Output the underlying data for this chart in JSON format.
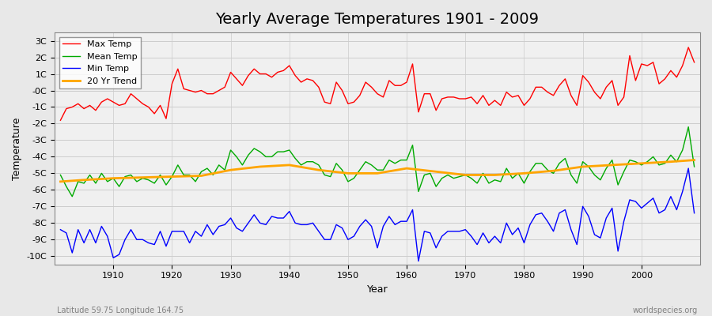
{
  "title": "Yearly Average Temperatures 1901 - 2009",
  "xlabel": "Year",
  "ylabel": "Temperature",
  "footnote_left": "Latitude 59.75 Longitude 164.75",
  "footnote_right": "worldspecies.org",
  "legend_labels": [
    "Max Temp",
    "Mean Temp",
    "Min Temp",
    "20 Yr Trend"
  ],
  "legend_colors": [
    "#ff0000",
    "#00aa00",
    "#0000ff",
    "#ffa500"
  ],
  "bg_color": "#e8e8e8",
  "plot_bg_color": "#f0f0f0",
  "grid_color": "#cccccc",
  "years": [
    1901,
    1902,
    1903,
    1904,
    1905,
    1906,
    1907,
    1908,
    1909,
    1910,
    1911,
    1912,
    1913,
    1914,
    1915,
    1916,
    1917,
    1918,
    1919,
    1920,
    1921,
    1922,
    1923,
    1924,
    1925,
    1926,
    1927,
    1928,
    1929,
    1930,
    1931,
    1932,
    1933,
    1934,
    1935,
    1936,
    1937,
    1938,
    1939,
    1940,
    1941,
    1942,
    1943,
    1944,
    1945,
    1946,
    1947,
    1948,
    1949,
    1950,
    1951,
    1952,
    1953,
    1954,
    1955,
    1956,
    1957,
    1958,
    1959,
    1960,
    1961,
    1962,
    1963,
    1964,
    1965,
    1966,
    1967,
    1968,
    1969,
    1970,
    1971,
    1972,
    1973,
    1974,
    1975,
    1976,
    1977,
    1978,
    1979,
    1980,
    1981,
    1982,
    1983,
    1984,
    1985,
    1986,
    1987,
    1988,
    1989,
    1990,
    1991,
    1992,
    1993,
    1994,
    1995,
    1996,
    1997,
    1998,
    1999,
    2000,
    2001,
    2002,
    2003,
    2004,
    2005,
    2006,
    2007,
    2008,
    2009
  ],
  "max_temp": [
    -1.8,
    -1.1,
    -1.0,
    -0.8,
    -1.1,
    -0.9,
    -1.2,
    -0.7,
    -0.5,
    -0.7,
    -0.9,
    -0.8,
    -0.2,
    -0.5,
    -0.8,
    -1.0,
    -1.4,
    -0.9,
    -1.7,
    0.4,
    1.3,
    0.1,
    0.0,
    -0.1,
    -0.0,
    -0.2,
    -0.2,
    0.0,
    0.2,
    1.1,
    0.7,
    0.3,
    0.9,
    1.3,
    1.0,
    1.0,
    0.8,
    1.1,
    1.2,
    1.5,
    0.9,
    0.5,
    0.7,
    0.6,
    0.2,
    -0.7,
    -0.8,
    0.5,
    0.0,
    -0.8,
    -0.7,
    -0.3,
    0.5,
    0.2,
    -0.2,
    -0.4,
    0.6,
    0.3,
    0.3,
    0.5,
    1.6,
    -1.3,
    -0.2,
    -0.2,
    -1.2,
    -0.5,
    -0.4,
    -0.4,
    -0.5,
    -0.5,
    -0.4,
    -0.8,
    -0.3,
    -0.9,
    -0.6,
    -0.9,
    -0.1,
    -0.4,
    -0.3,
    -0.9,
    -0.5,
    0.2,
    0.2,
    -0.1,
    -0.3,
    0.3,
    0.7,
    -0.3,
    -0.9,
    0.9,
    0.5,
    -0.1,
    -0.5,
    0.2,
    0.6,
    -0.9,
    -0.4,
    2.1,
    0.6,
    1.6,
    1.5,
    1.7,
    0.4,
    0.7,
    1.2,
    0.8,
    1.5,
    2.6,
    1.7
  ],
  "mean_temp": [
    -5.1,
    -5.8,
    -6.4,
    -5.5,
    -5.6,
    -5.1,
    -5.6,
    -5.0,
    -5.5,
    -5.3,
    -5.8,
    -5.2,
    -5.1,
    -5.5,
    -5.3,
    -5.4,
    -5.6,
    -5.1,
    -5.7,
    -5.2,
    -4.5,
    -5.1,
    -5.1,
    -5.5,
    -4.9,
    -4.7,
    -5.1,
    -4.5,
    -4.8,
    -3.6,
    -4.0,
    -4.5,
    -3.9,
    -3.5,
    -3.7,
    -4.0,
    -4.0,
    -3.7,
    -3.7,
    -3.6,
    -4.1,
    -4.5,
    -4.3,
    -4.3,
    -4.5,
    -5.1,
    -5.2,
    -4.4,
    -4.8,
    -5.5,
    -5.3,
    -4.8,
    -4.3,
    -4.5,
    -4.8,
    -4.8,
    -4.2,
    -4.4,
    -4.2,
    -4.2,
    -3.3,
    -6.1,
    -5.1,
    -5.0,
    -5.8,
    -5.3,
    -5.1,
    -5.3,
    -5.2,
    -5.1,
    -5.3,
    -5.6,
    -5.0,
    -5.6,
    -5.4,
    -5.5,
    -4.7,
    -5.3,
    -5.0,
    -5.6,
    -4.9,
    -4.4,
    -4.4,
    -4.8,
    -5.0,
    -4.4,
    -4.1,
    -5.1,
    -5.6,
    -4.3,
    -4.6,
    -5.1,
    -5.4,
    -4.7,
    -4.2,
    -5.7,
    -4.9,
    -4.2,
    -4.3,
    -4.5,
    -4.3,
    -4.0,
    -4.5,
    -4.4,
    -3.9,
    -4.3,
    -3.6,
    -2.2,
    -4.6
  ],
  "min_temp": [
    -8.4,
    -8.6,
    -9.8,
    -8.4,
    -9.2,
    -8.4,
    -9.2,
    -8.2,
    -8.8,
    -10.1,
    -9.9,
    -9.0,
    -8.4,
    -9.0,
    -9.0,
    -9.2,
    -9.3,
    -8.5,
    -9.4,
    -8.5,
    -8.5,
    -8.5,
    -9.2,
    -8.5,
    -8.8,
    -8.1,
    -8.7,
    -8.2,
    -8.1,
    -7.7,
    -8.3,
    -8.5,
    -8.0,
    -7.5,
    -8.0,
    -8.1,
    -7.6,
    -7.7,
    -7.7,
    -7.3,
    -8.0,
    -8.1,
    -8.1,
    -8.0,
    -8.5,
    -9.0,
    -9.0,
    -8.1,
    -8.3,
    -9.0,
    -8.8,
    -8.2,
    -7.8,
    -8.2,
    -9.5,
    -8.2,
    -7.6,
    -8.1,
    -7.9,
    -7.9,
    -7.2,
    -10.3,
    -8.5,
    -8.6,
    -9.5,
    -8.8,
    -8.5,
    -8.5,
    -8.5,
    -8.4,
    -8.8,
    -9.3,
    -8.6,
    -9.2,
    -8.8,
    -9.2,
    -8.0,
    -8.7,
    -8.3,
    -9.2,
    -8.1,
    -7.5,
    -7.4,
    -7.9,
    -8.5,
    -7.4,
    -7.2,
    -8.4,
    -9.3,
    -7.0,
    -7.6,
    -8.7,
    -8.9,
    -7.7,
    -7.1,
    -9.7,
    -7.9,
    -6.6,
    -6.7,
    -7.1,
    -6.8,
    -6.5,
    -7.4,
    -7.2,
    -6.4,
    -7.2,
    -6.1,
    -4.7,
    -7.4
  ],
  "trend_years": [
    1901,
    1905,
    1910,
    1915,
    1920,
    1925,
    1930,
    1935,
    1940,
    1945,
    1950,
    1955,
    1960,
    1965,
    1970,
    1975,
    1980,
    1985,
    1990,
    1995,
    2000,
    2005,
    2009
  ],
  "trend_vals": [
    -5.5,
    -5.4,
    -5.3,
    -5.25,
    -5.2,
    -5.15,
    -4.8,
    -4.6,
    -4.5,
    -4.8,
    -5.0,
    -5.0,
    -4.7,
    -4.9,
    -5.1,
    -5.1,
    -5.0,
    -4.85,
    -4.6,
    -4.5,
    -4.4,
    -4.3,
    -4.2
  ],
  "ylim": [
    -10.5,
    3.5
  ],
  "yticks": [
    -10,
    -9,
    -8,
    -7,
    -6,
    -5,
    -4,
    -3,
    -2,
    -1,
    0,
    1,
    2,
    3
  ],
  "ytick_labels": [
    "-10C",
    "-9C",
    "-8C",
    "-7C",
    "-6C",
    "-5C",
    "-4C",
    "-3C",
    "-2C",
    "-1C",
    "-0C",
    "1C",
    "2C",
    "3C"
  ],
  "xlim": [
    1900,
    2010
  ]
}
